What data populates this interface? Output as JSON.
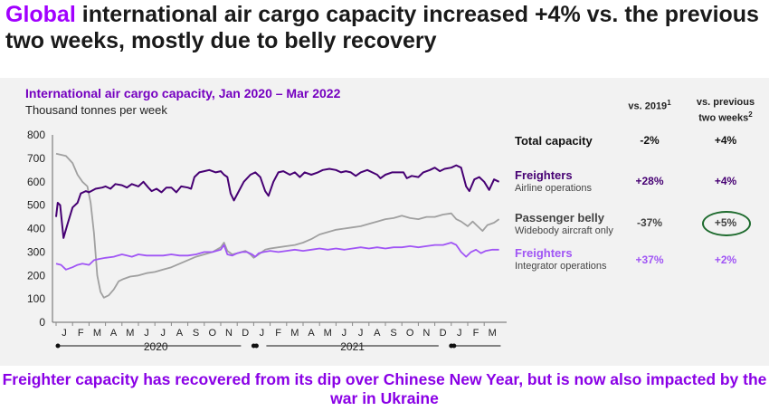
{
  "headline": {
    "highlight": "Global",
    "rest": " international air cargo capacity increased +4% vs. the previous two weeks, mostly due to belly recovery"
  },
  "footer": "Freighter capacity has recovered from its dip over Chinese New Year, but is now also impacted by the war in Ukraine",
  "chart_data": {
    "type": "line",
    "title": "International air cargo capacity, Jan 2020 – Mar 2022",
    "ylabel": "Thousand tonnes per week",
    "ylim": [
      0,
      800
    ],
    "yticks": [
      0,
      100,
      200,
      300,
      400,
      500,
      600,
      700,
      800
    ],
    "months": [
      "J",
      "F",
      "M",
      "A",
      "M",
      "J",
      "J",
      "A",
      "S",
      "O",
      "N",
      "D",
      "J",
      "F",
      "M",
      "A",
      "M",
      "J",
      "J",
      "A",
      "S",
      "O",
      "N",
      "D",
      "J",
      "F",
      "M"
    ],
    "years": [
      "2020",
      "2021"
    ],
    "colors": {
      "freighters_airline": "#460073",
      "passenger_belly": "#a0a0a0",
      "freighters_integrator": "#a055f5"
    },
    "series": [
      {
        "key": "freighters_airline",
        "name": "Freighters",
        "subtitle": "Airline operations",
        "values": [
          [
            0,
            450
          ],
          [
            0.1,
            510
          ],
          [
            0.25,
            500
          ],
          [
            0.45,
            360
          ],
          [
            0.7,
            420
          ],
          [
            1,
            490
          ],
          [
            1.3,
            510
          ],
          [
            1.5,
            550
          ],
          [
            1.8,
            560
          ],
          [
            2,
            555
          ],
          [
            2.4,
            570
          ],
          [
            2.8,
            575
          ],
          [
            3,
            580
          ],
          [
            3.3,
            570
          ],
          [
            3.6,
            590
          ],
          [
            4,
            585
          ],
          [
            4.3,
            575
          ],
          [
            4.6,
            590
          ],
          [
            5,
            580
          ],
          [
            5.3,
            600
          ],
          [
            5.6,
            575
          ],
          [
            5.8,
            560
          ],
          [
            6.1,
            570
          ],
          [
            6.4,
            555
          ],
          [
            6.7,
            575
          ],
          [
            7,
            575
          ],
          [
            7.3,
            555
          ],
          [
            7.6,
            580
          ],
          [
            8,
            575
          ],
          [
            8.2,
            570
          ],
          [
            8.4,
            620
          ],
          [
            8.7,
            640
          ],
          [
            9,
            645
          ],
          [
            9.3,
            650
          ],
          [
            9.7,
            640
          ],
          [
            10,
            645
          ],
          [
            10.2,
            630
          ],
          [
            10.4,
            620
          ],
          [
            10.6,
            550
          ],
          [
            10.8,
            520
          ],
          [
            11.1,
            560
          ],
          [
            11.4,
            600
          ],
          [
            11.8,
            630
          ],
          [
            12.1,
            640
          ],
          [
            12.4,
            620
          ],
          [
            12.7,
            560
          ],
          [
            12.9,
            540
          ],
          [
            13.2,
            600
          ],
          [
            13.5,
            640
          ],
          [
            13.8,
            645
          ],
          [
            14.2,
            630
          ],
          [
            14.5,
            640
          ],
          [
            14.8,
            620
          ],
          [
            15.1,
            640
          ],
          [
            15.5,
            630
          ],
          [
            15.9,
            640
          ],
          [
            16.2,
            650
          ],
          [
            16.6,
            655
          ],
          [
            17,
            650
          ],
          [
            17.3,
            640
          ],
          [
            17.6,
            645
          ],
          [
            17.9,
            640
          ],
          [
            18.2,
            625
          ],
          [
            18.5,
            640
          ],
          [
            18.9,
            650
          ],
          [
            19.2,
            640
          ],
          [
            19.5,
            630
          ],
          [
            19.7,
            615
          ],
          [
            20,
            630
          ],
          [
            20.4,
            640
          ],
          [
            20.8,
            640
          ],
          [
            21.1,
            640
          ],
          [
            21.3,
            615
          ],
          [
            21.6,
            625
          ],
          [
            22,
            620
          ],
          [
            22.3,
            640
          ],
          [
            22.7,
            650
          ],
          [
            23,
            660
          ],
          [
            23.3,
            645
          ],
          [
            23.6,
            655
          ],
          [
            24,
            660
          ],
          [
            24.3,
            670
          ],
          [
            24.6,
            660
          ],
          [
            24.9,
            580
          ],
          [
            25.1,
            560
          ],
          [
            25.4,
            610
          ],
          [
            25.7,
            620
          ],
          [
            26,
            600
          ],
          [
            26.3,
            565
          ],
          [
            26.6,
            610
          ],
          [
            26.9,
            600
          ]
        ]
      },
      {
        "key": "passenger_belly",
        "name": "Passenger belly",
        "subtitle": "Widebody aircraft only",
        "values": [
          [
            0,
            720
          ],
          [
            0.3,
            715
          ],
          [
            0.6,
            710
          ],
          [
            1,
            680
          ],
          [
            1.3,
            630
          ],
          [
            1.6,
            600
          ],
          [
            1.9,
            580
          ],
          [
            2.1,
            510
          ],
          [
            2.3,
            380
          ],
          [
            2.5,
            200
          ],
          [
            2.7,
            130
          ],
          [
            2.9,
            105
          ],
          [
            3.2,
            115
          ],
          [
            3.5,
            140
          ],
          [
            3.8,
            175
          ],
          [
            4.1,
            185
          ],
          [
            4.5,
            195
          ],
          [
            5,
            200
          ],
          [
            5.5,
            210
          ],
          [
            6,
            215
          ],
          [
            6.5,
            225
          ],
          [
            7,
            235
          ],
          [
            7.5,
            250
          ],
          [
            8,
            265
          ],
          [
            8.5,
            280
          ],
          [
            9,
            290
          ],
          [
            9.5,
            300
          ],
          [
            10,
            320
          ],
          [
            10.2,
            340
          ],
          [
            10.4,
            305
          ],
          [
            10.7,
            290
          ],
          [
            11,
            295
          ],
          [
            11.5,
            305
          ],
          [
            11.8,
            290
          ],
          [
            12,
            275
          ],
          [
            12.3,
            290
          ],
          [
            12.7,
            310
          ],
          [
            13,
            315
          ],
          [
            13.5,
            320
          ],
          [
            14,
            325
          ],
          [
            14.5,
            330
          ],
          [
            15,
            340
          ],
          [
            15.5,
            355
          ],
          [
            16,
            375
          ],
          [
            16.5,
            385
          ],
          [
            17,
            395
          ],
          [
            17.5,
            400
          ],
          [
            18,
            405
          ],
          [
            18.5,
            410
          ],
          [
            19,
            420
          ],
          [
            19.5,
            430
          ],
          [
            20,
            440
          ],
          [
            20.5,
            445
          ],
          [
            21,
            455
          ],
          [
            21.5,
            445
          ],
          [
            22,
            440
          ],
          [
            22.5,
            450
          ],
          [
            23,
            450
          ],
          [
            23.5,
            460
          ],
          [
            24,
            465
          ],
          [
            24.3,
            440
          ],
          [
            24.6,
            430
          ],
          [
            25,
            410
          ],
          [
            25.3,
            430
          ],
          [
            25.6,
            410
          ],
          [
            25.9,
            390
          ],
          [
            26.2,
            415
          ],
          [
            26.6,
            425
          ],
          [
            26.9,
            440
          ]
        ]
      },
      {
        "key": "freighters_integrator",
        "name": "Freighters",
        "subtitle": "Integrator operations",
        "values": [
          [
            0,
            250
          ],
          [
            0.3,
            245
          ],
          [
            0.6,
            225
          ],
          [
            1,
            235
          ],
          [
            1.3,
            245
          ],
          [
            1.6,
            250
          ],
          [
            2,
            245
          ],
          [
            2.3,
            265
          ],
          [
            2.6,
            270
          ],
          [
            3,
            275
          ],
          [
            3.5,
            280
          ],
          [
            4,
            290
          ],
          [
            4.3,
            285
          ],
          [
            4.6,
            280
          ],
          [
            5,
            290
          ],
          [
            5.5,
            285
          ],
          [
            6,
            285
          ],
          [
            6.5,
            285
          ],
          [
            7,
            290
          ],
          [
            7.5,
            285
          ],
          [
            8,
            285
          ],
          [
            8.5,
            290
          ],
          [
            9,
            300
          ],
          [
            9.5,
            300
          ],
          [
            10,
            310
          ],
          [
            10.2,
            330
          ],
          [
            10.4,
            290
          ],
          [
            10.7,
            285
          ],
          [
            11,
            295
          ],
          [
            11.3,
            300
          ],
          [
            11.6,
            300
          ],
          [
            11.9,
            290
          ],
          [
            12.1,
            280
          ],
          [
            12.3,
            295
          ],
          [
            12.6,
            300
          ],
          [
            13,
            305
          ],
          [
            13.5,
            300
          ],
          [
            14,
            305
          ],
          [
            14.5,
            310
          ],
          [
            15,
            305
          ],
          [
            15.5,
            310
          ],
          [
            16,
            315
          ],
          [
            16.5,
            310
          ],
          [
            17,
            315
          ],
          [
            17.5,
            310
          ],
          [
            18,
            315
          ],
          [
            18.5,
            320
          ],
          [
            19,
            315
          ],
          [
            19.5,
            320
          ],
          [
            20,
            315
          ],
          [
            20.5,
            320
          ],
          [
            21,
            320
          ],
          [
            21.5,
            325
          ],
          [
            22,
            320
          ],
          [
            22.5,
            325
          ],
          [
            23,
            330
          ],
          [
            23.5,
            330
          ],
          [
            24,
            340
          ],
          [
            24.3,
            330
          ],
          [
            24.6,
            300
          ],
          [
            24.9,
            280
          ],
          [
            25.2,
            300
          ],
          [
            25.5,
            310
          ],
          [
            25.8,
            295
          ],
          [
            26.1,
            305
          ],
          [
            26.5,
            310
          ],
          [
            26.9,
            310
          ]
        ]
      }
    ],
    "summary": {
      "headers": [
        "vs. 2019",
        "vs. previous two weeks"
      ],
      "header_sups": [
        "1",
        "2"
      ],
      "rows": [
        {
          "label": "Total capacity",
          "subtitle": "",
          "vs2019": "-2%",
          "vsprev": "+4%"
        },
        {
          "label": "Freighters",
          "subtitle": "Airline operations",
          "vs2019": "+28%",
          "vsprev": "+4%"
        },
        {
          "label": "Passenger belly",
          "subtitle": "Widebody aircraft only",
          "vs2019": "-37%",
          "vsprev": "+5%"
        },
        {
          "label": "Freighters",
          "subtitle": "Integrator operations",
          "vs2019": "+37%",
          "vsprev": "+2%"
        }
      ]
    }
  }
}
